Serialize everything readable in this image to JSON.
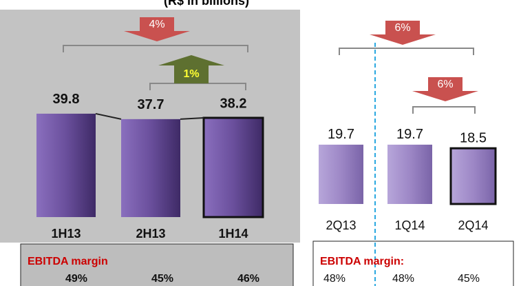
{
  "subtitle": "(R$ in billions)",
  "chart_data": [
    {
      "type": "bar",
      "categories": [
        "1H13",
        "2H13",
        "1H14"
      ],
      "values": [
        39.8,
        37.7,
        38.2
      ],
      "color": "#6a4f9c",
      "annotations": [
        {
          "text": "4%",
          "direction": "down",
          "color": "#c9514f"
        },
        {
          "text": "1%",
          "direction": "up",
          "color": "#5e7030"
        }
      ],
      "margin": {
        "label": "EBITDA margin",
        "values": [
          49,
          45,
          46
        ],
        "value_labels": [
          "49%",
          "45%",
          "46%"
        ]
      }
    },
    {
      "type": "bar",
      "categories": [
        "2Q13",
        "1Q14",
        "2Q14"
      ],
      "values": [
        19.7,
        19.7,
        18.5
      ],
      "color": "#9d87c6",
      "annotations": [
        {
          "text": "6%",
          "direction": "down",
          "color": "#c9514f"
        },
        {
          "text": "6%",
          "direction": "down",
          "color": "#c9514f"
        }
      ],
      "margin": {
        "label": "EBITDA margin:",
        "values": [
          48,
          48,
          45
        ],
        "value_labels": [
          "48%",
          "48%",
          "45%"
        ]
      }
    }
  ]
}
